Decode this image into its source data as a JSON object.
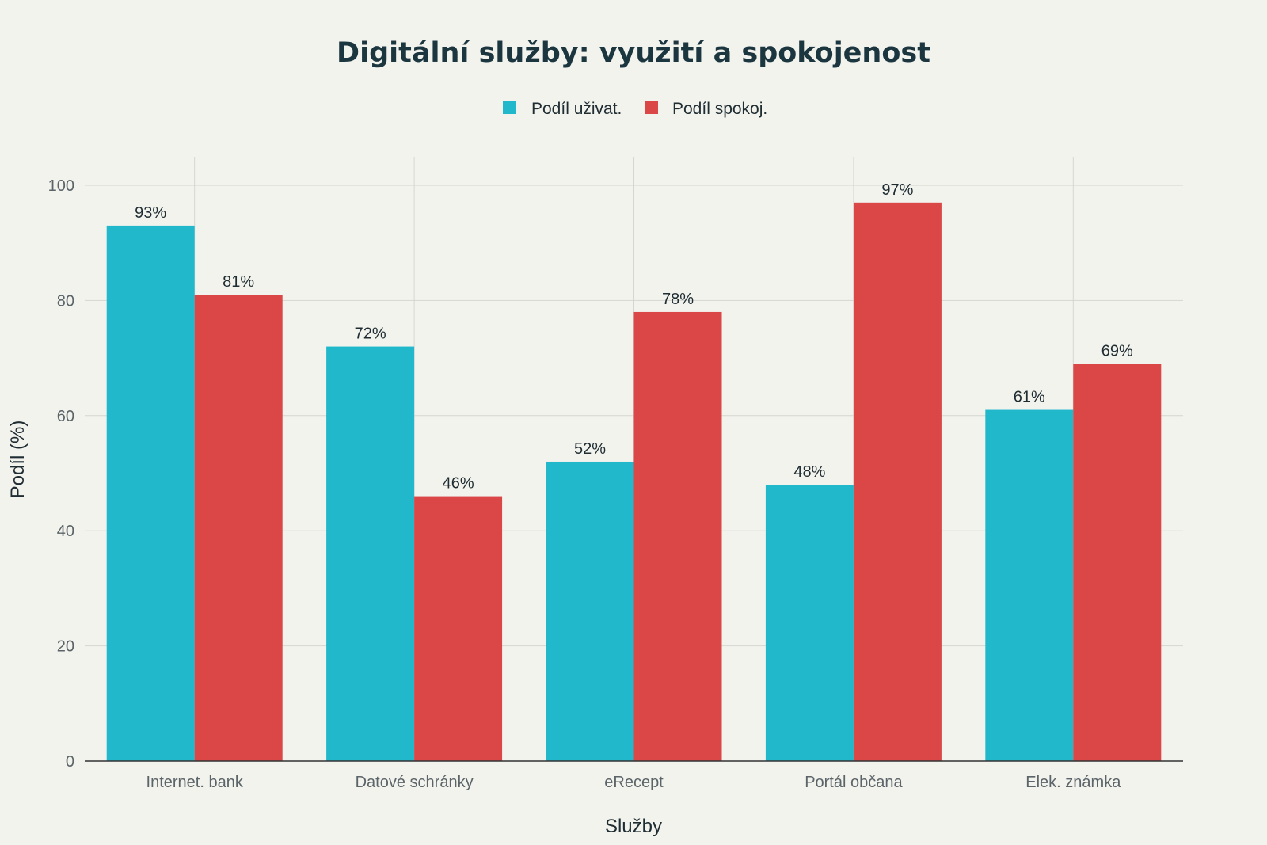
{
  "chart_data": {
    "type": "bar",
    "title": "Digitální služby: využití a spokojenost",
    "xlabel": "Služby",
    "ylabel": "Podíl (%)",
    "ylim": [
      0,
      100
    ],
    "yticks": [
      0,
      20,
      40,
      60,
      80,
      100
    ],
    "grid": true,
    "legend_position": "top-center",
    "categories": [
      "Internet. bank",
      "Datové schránky",
      "eRecept",
      "Portál občana",
      "Elek. známka"
    ],
    "series": [
      {
        "name": "Podíl uživat.",
        "color": "#21b8cc",
        "values": [
          93,
          72,
          52,
          48,
          61
        ],
        "labels": [
          "93%",
          "72%",
          "52%",
          "48%",
          "61%"
        ]
      },
      {
        "name": "Podíl spokoj.",
        "color": "#db4647",
        "values": [
          81,
          46,
          78,
          97,
          69
        ],
        "labels": [
          "81%",
          "46%",
          "78%",
          "97%",
          "69%"
        ]
      }
    ]
  }
}
